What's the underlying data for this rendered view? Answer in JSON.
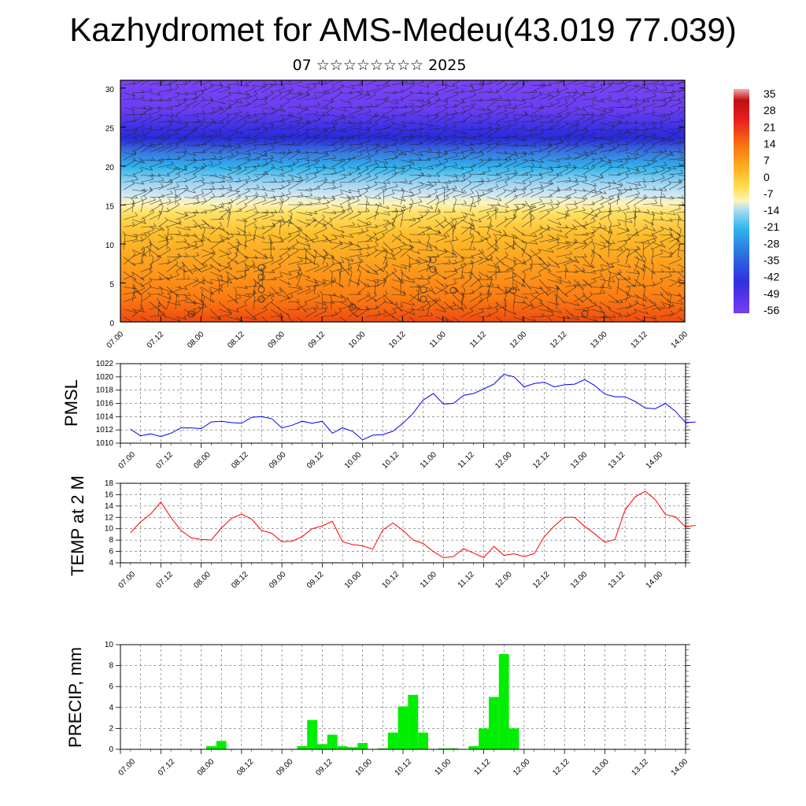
{
  "title": "Kazhydromet for AMS-Medeu(43.019 77.039)",
  "subtitle": "07 ☆☆☆☆☆☆☆☆ 2025",
  "time_ticks": [
    "07.00",
    "07.12",
    "08.00",
    "08.12",
    "09.00",
    "09.12",
    "10.00",
    "10.12",
    "11.00",
    "11.12",
    "12.00",
    "12.12",
    "13.00",
    "13.12",
    "14.00"
  ],
  "colors": {
    "pmsl_line": "#0000ff",
    "temp_line": "#ff0000",
    "precip_bar": "#00ee00"
  },
  "chart_data": [
    {
      "type": "heatmap",
      "name": "cross-section",
      "ylim": [
        0,
        31
      ],
      "yticks": [
        "0",
        "5",
        "10",
        "15",
        "20",
        "25",
        "30"
      ],
      "colorbar_labels": [
        "35",
        "28",
        "21",
        "14",
        "7",
        "0",
        "-7",
        "-14",
        "-21",
        "-28",
        "-35",
        "-42",
        "-49",
        "-56"
      ],
      "grid": false
    },
    {
      "type": "line",
      "ylabel": "PMSL",
      "ylim": [
        1010,
        1022
      ],
      "yticks": [
        "1010",
        "1012",
        "1014",
        "1016",
        "1018",
        "1020",
        "1022"
      ],
      "grid": true,
      "x": [
        0,
        3,
        6,
        9,
        12,
        15,
        18,
        21,
        24,
        27,
        30,
        33,
        36,
        39,
        42,
        45,
        48,
        51,
        54,
        57,
        60,
        63,
        66,
        69,
        72,
        75,
        78,
        81,
        84,
        87,
        90,
        93,
        96,
        99,
        102,
        105,
        108,
        111,
        114,
        117,
        120,
        123,
        126,
        129,
        132,
        135,
        138,
        141,
        144,
        147,
        150,
        153,
        156,
        159,
        162,
        165,
        168
      ],
      "values": [
        1012.1,
        1011.1,
        1011.4,
        1011.0,
        1011.5,
        1012.3,
        1012.3,
        1012.2,
        1013.2,
        1013.3,
        1013.1,
        1013.0,
        1013.9,
        1014.0,
        1013.7,
        1012.3,
        1012.7,
        1013.3,
        1013.0,
        1013.3,
        1011.5,
        1012.3,
        1011.8,
        1010.5,
        1011.2,
        1011.3,
        1011.8,
        1013.0,
        1014.5,
        1016.5,
        1017.5,
        1015.9,
        1016.0,
        1017.2,
        1017.5,
        1018.2,
        1018.9,
        1020.4,
        1020.0,
        1018.5,
        1019.0,
        1019.2,
        1018.5,
        1018.8,
        1018.9,
        1019.6,
        1018.7,
        1017.4,
        1017.0,
        1017.0,
        1016.3,
        1015.3,
        1015.2,
        1016.0,
        1014.8,
        1013.1,
        1013.2
      ]
    },
    {
      "type": "line",
      "ylabel": "TEMP at 2 M",
      "ylim": [
        4,
        18
      ],
      "yticks": [
        "4",
        "6",
        "8",
        "10",
        "12",
        "14",
        "16",
        "18"
      ],
      "grid": true,
      "x": [
        0,
        3,
        6,
        9,
        12,
        15,
        18,
        21,
        24,
        27,
        30,
        33,
        36,
        39,
        42,
        45,
        48,
        51,
        54,
        57,
        60,
        63,
        66,
        69,
        72,
        75,
        78,
        81,
        84,
        87,
        90,
        93,
        96,
        99,
        102,
        105,
        108,
        111,
        114,
        117,
        120,
        123,
        126,
        129,
        132,
        135,
        138,
        141,
        144,
        147,
        150,
        153,
        156,
        159,
        162,
        165,
        168
      ],
      "values": [
        9.3,
        11.2,
        12.6,
        14.7,
        12.0,
        9.7,
        8.4,
        8.1,
        8.0,
        10.1,
        11.8,
        12.6,
        11.7,
        9.7,
        9.2,
        7.7,
        7.8,
        8.6,
        10.0,
        10.5,
        11.3,
        7.7,
        7.2,
        7.0,
        6.4,
        9.8,
        11.0,
        9.7,
        8.0,
        7.4,
        6.0,
        4.9,
        5.1,
        6.5,
        5.7,
        4.9,
        6.9,
        5.3,
        5.6,
        5.1,
        5.6,
        8.6,
        10.5,
        12.0,
        12.0,
        10.4,
        9.1,
        7.6,
        8.1,
        13.3,
        15.6,
        16.6,
        15.1,
        12.5,
        12.1,
        10.3,
        10.6
      ]
    },
    {
      "type": "bar",
      "ylabel": "PRECIP, mm",
      "ylim": [
        0,
        10
      ],
      "yticks": [
        "0",
        "2",
        "4",
        "6",
        "8",
        "10"
      ],
      "grid": true,
      "x": [
        0,
        3,
        6,
        9,
        12,
        15,
        18,
        21,
        24,
        27,
        30,
        33,
        36,
        39,
        42,
        45,
        48,
        51,
        54,
        57,
        60,
        63,
        66,
        69,
        72,
        75,
        78,
        81,
        84,
        87,
        90,
        93,
        96,
        99,
        102,
        105,
        108,
        111,
        114,
        117,
        120,
        123,
        126,
        129,
        132,
        135,
        138,
        141,
        144,
        147,
        150,
        153,
        156,
        159,
        162,
        165,
        168
      ],
      "values": [
        0,
        0,
        0,
        0,
        0,
        0,
        0,
        0,
        0.3,
        0.8,
        0,
        0,
        0,
        0,
        0,
        0,
        0,
        0.3,
        2.8,
        0.5,
        1.4,
        0.3,
        0.2,
        0.6,
        0,
        0.1,
        1.6,
        4.1,
        5.2,
        1.6,
        0,
        0.1,
        0.1,
        0,
        0.3,
        2.0,
        5.0,
        9.1,
        2.0,
        0,
        0,
        0,
        0,
        0,
        0,
        0,
        0,
        0,
        0,
        0,
        0,
        0,
        0,
        0,
        0,
        0,
        0
      ]
    }
  ]
}
